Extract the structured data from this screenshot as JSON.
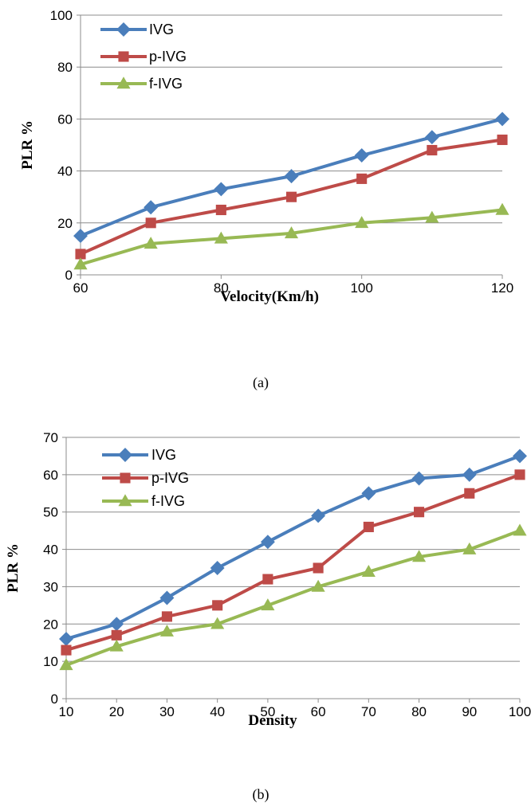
{
  "chart_data": [
    {
      "type": "line",
      "x": [
        60,
        70,
        80,
        90,
        100,
        110,
        120
      ],
      "x_tick_labels": [
        "60",
        "80",
        "100",
        "120"
      ],
      "y_tick_labels": [
        "0",
        "20",
        "40",
        "60",
        "80",
        "100"
      ],
      "xlim": [
        60,
        120
      ],
      "ylim": [
        0,
        100
      ],
      "xlabel": "Velocity(Km/h)",
      "ylabel": "PLR %",
      "caption": "(a)",
      "grid": "horizontal",
      "legend_position": "top-left",
      "series": [
        {
          "name": "IVG",
          "color": "#4a7ebb",
          "marker": "diamond",
          "values": [
            15,
            26,
            33,
            38,
            46,
            53,
            60
          ]
        },
        {
          "name": "p-IVG",
          "color": "#be4b48",
          "marker": "square",
          "values": [
            8,
            20,
            25,
            30,
            37,
            48,
            52
          ]
        },
        {
          "name": "f-IVG",
          "color": "#98b954",
          "marker": "triangle",
          "values": [
            4,
            12,
            14,
            16,
            20,
            22,
            25
          ]
        }
      ]
    },
    {
      "type": "line",
      "x": [
        10,
        20,
        30,
        40,
        50,
        60,
        70,
        80,
        90,
        100
      ],
      "x_tick_labels": [
        "10",
        "20",
        "30",
        "40",
        "50",
        "60",
        "70",
        "80",
        "90",
        "100"
      ],
      "y_tick_labels": [
        "0",
        "10",
        "20",
        "30",
        "40",
        "50",
        "60",
        "70"
      ],
      "xlim": [
        10,
        100
      ],
      "ylim": [
        0,
        70
      ],
      "xlabel": "Density",
      "ylabel": "PLR %",
      "caption": "(b)",
      "grid": "horizontal",
      "legend_position": "top-left",
      "series": [
        {
          "name": "IVG",
          "color": "#4a7ebb",
          "marker": "diamond",
          "values": [
            16,
            20,
            27,
            35,
            42,
            49,
            55,
            59,
            60,
            65
          ]
        },
        {
          "name": "p-IVG",
          "color": "#be4b48",
          "marker": "square",
          "values": [
            13,
            17,
            22,
            25,
            32,
            35,
            46,
            50,
            55,
            60
          ]
        },
        {
          "name": "f-IVG",
          "color": "#98b954",
          "marker": "triangle",
          "values": [
            9,
            14,
            18,
            20,
            25,
            30,
            34,
            38,
            40,
            45
          ]
        }
      ]
    }
  ]
}
